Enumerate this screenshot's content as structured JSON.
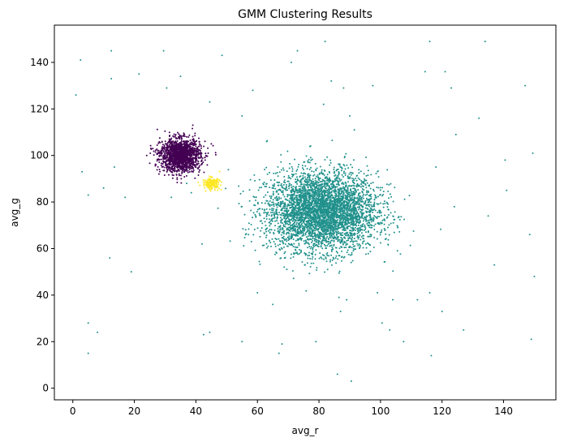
{
  "chart_data": {
    "type": "scatter",
    "title": "GMM Clustering Results",
    "xlabel": "avg_r",
    "ylabel": "avg_g",
    "xlim": [
      -6,
      157
    ],
    "ylim": [
      -5,
      156
    ],
    "xticks": [
      0,
      20,
      40,
      60,
      80,
      100,
      120,
      140
    ],
    "yticks": [
      0,
      20,
      40,
      60,
      80,
      100,
      120,
      140
    ],
    "grid": false,
    "legend": "none",
    "series": [
      {
        "cluster": 0,
        "color": "#440154",
        "distribution": {
          "center": [
            35,
            100
          ],
          "spread": [
            3.2,
            3.5
          ],
          "count": 1600
        },
        "points": [
          [
            27,
            96
          ],
          [
            24,
            100
          ],
          [
            29,
            106
          ],
          [
            41,
            104
          ],
          [
            44,
            101
          ],
          [
            45,
            105
          ],
          [
            39,
            113
          ],
          [
            28,
            92
          ],
          [
            43,
            98
          ],
          [
            37,
            108
          ],
          [
            26,
            103
          ],
          [
            40,
            95
          ]
        ]
      },
      {
        "cluster": 1,
        "color": "#21918c",
        "distribution": {
          "center": [
            81,
            76
          ],
          "spread": [
            9,
            8.5
          ],
          "count": 4200
        },
        "points": [
          [
            1,
            126
          ],
          [
            2.5,
            141
          ],
          [
            3,
            93
          ],
          [
            5,
            83
          ],
          [
            5,
            15
          ],
          [
            5,
            28
          ],
          [
            8,
            24
          ],
          [
            10,
            86
          ],
          [
            12,
            56
          ],
          [
            12.5,
            145
          ],
          [
            12.5,
            133
          ],
          [
            13.5,
            95
          ],
          [
            17,
            82
          ],
          [
            19,
            50
          ],
          [
            21.5,
            135
          ],
          [
            29.5,
            145
          ],
          [
            30.5,
            129
          ],
          [
            32,
            82
          ],
          [
            35,
            134
          ],
          [
            37,
            88
          ],
          [
            38.5,
            84
          ],
          [
            42,
            62
          ],
          [
            42.5,
            23
          ],
          [
            44.5,
            24
          ],
          [
            44.5,
            123
          ],
          [
            48.5,
            143
          ],
          [
            55,
            117
          ],
          [
            55,
            20
          ],
          [
            58.5,
            128
          ],
          [
            60,
            41
          ],
          [
            63,
            106
          ],
          [
            65,
            36
          ],
          [
            67,
            15
          ],
          [
            68,
            19
          ],
          [
            71,
            140
          ],
          [
            73,
            145
          ],
          [
            79,
            20
          ],
          [
            81.5,
            122
          ],
          [
            82,
            149
          ],
          [
            84,
            132
          ],
          [
            86,
            6
          ],
          [
            86.5,
            39
          ],
          [
            87,
            33
          ],
          [
            88,
            129
          ],
          [
            89,
            38
          ],
          [
            90,
            117
          ],
          [
            90.5,
            3
          ],
          [
            91.5,
            111
          ],
          [
            97.5,
            130
          ],
          [
            99,
            41
          ],
          [
            100.5,
            28
          ],
          [
            103,
            25
          ],
          [
            104,
            38
          ],
          [
            107.5,
            20
          ],
          [
            112,
            38
          ],
          [
            114.5,
            136
          ],
          [
            116,
            149
          ],
          [
            116.5,
            14
          ],
          [
            116,
            41
          ],
          [
            118,
            95
          ],
          [
            120,
            33
          ],
          [
            121,
            136
          ],
          [
            123,
            129
          ],
          [
            124,
            78
          ],
          [
            124.5,
            109
          ],
          [
            127,
            25
          ],
          [
            132,
            116
          ],
          [
            134,
            149
          ],
          [
            135,
            74
          ],
          [
            137,
            53
          ],
          [
            140.5,
            98
          ],
          [
            141,
            85
          ],
          [
            147,
            130
          ],
          [
            148.5,
            66
          ],
          [
            149,
            21
          ],
          [
            149.5,
            101
          ],
          [
            150,
            48
          ]
        ]
      },
      {
        "cluster": 2,
        "color": "#fde725",
        "distribution": {
          "center": [
            45,
            88
          ],
          "spread": [
            1.4,
            1.2
          ],
          "count": 180
        },
        "points": []
      }
    ]
  }
}
